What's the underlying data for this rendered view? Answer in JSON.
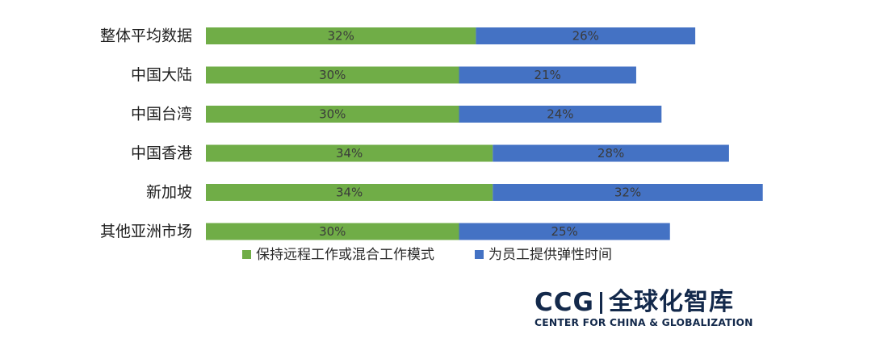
{
  "chart_data": {
    "type": "bar",
    "orientation": "horizontal",
    "stacked": true,
    "categories": [
      "整体平均数据",
      "中国大陆",
      "中国台湾",
      "中国香港",
      "新加坡",
      "其他亚洲市场"
    ],
    "series": [
      {
        "name": "保持远程工作或混合工作模式",
        "values": [
          32,
          30,
          30,
          34,
          34,
          30
        ],
        "color": "#70ad47"
      },
      {
        "name": "为员工提供弹性时间",
        "values": [
          26,
          21,
          24,
          28,
          32,
          25
        ],
        "color": "#4472c4"
      }
    ],
    "value_format": "percent",
    "grid": false,
    "legend_position": "bottom"
  },
  "logo": {
    "abbr": "CCG",
    "cn_name": "全球化智库",
    "en_name": "CENTER FOR CHINA & GLOBALIZATION"
  }
}
